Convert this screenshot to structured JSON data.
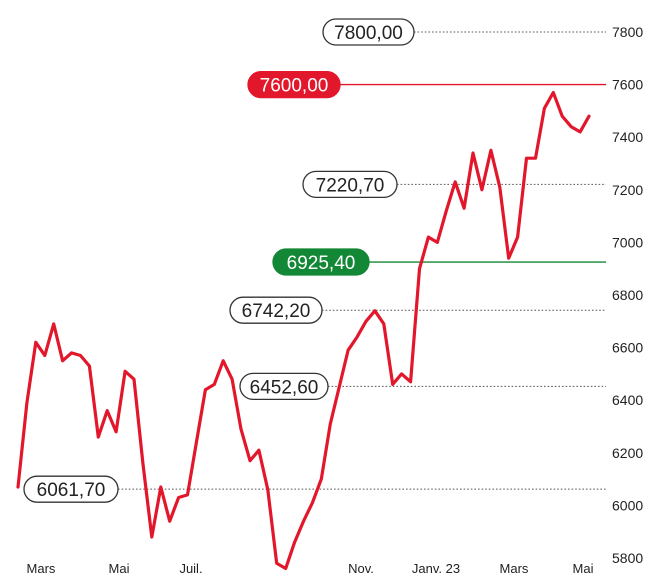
{
  "colors": {
    "line": "#e3172b",
    "resistance": "#e3172b",
    "support": "#128735",
    "dotted": "#555555",
    "text": "#222222"
  },
  "chart_data": {
    "type": "line",
    "title": "",
    "xlabel": "",
    "ylabel": "",
    "ylim": [
      5800,
      7900
    ],
    "grid": false,
    "y_axis_side": "right",
    "y_ticks": [
      "7800",
      "7600",
      "7400",
      "7200",
      "7000",
      "6800",
      "6600",
      "6400",
      "6200",
      "6000",
      "5800"
    ],
    "x_ticks": [
      "Mars",
      "Mai",
      "Juil.",
      "Nov.",
      "Janv. 23",
      "Mars",
      "Mai"
    ],
    "levels": [
      {
        "label": "7800,00",
        "value": 7800.0,
        "style": "dotted"
      },
      {
        "label": "7600,00",
        "value": 7600.0,
        "style": "resistance"
      },
      {
        "label": "7220,70",
        "value": 7220.7,
        "style": "dotted"
      },
      {
        "label": "6925,40",
        "value": 6925.4,
        "style": "support"
      },
      {
        "label": "6742,20",
        "value": 6742.2,
        "style": "dotted"
      },
      {
        "label": "6452,60",
        "value": 6452.6,
        "style": "dotted"
      },
      {
        "label": "6061,70",
        "value": 6061.7,
        "style": "dotted"
      }
    ],
    "series": [
      {
        "values": [
          6070,
          6390,
          6620,
          6570,
          6690,
          6550,
          6580,
          6570,
          6530,
          6260,
          6360,
          6280,
          6510,
          6480,
          6160,
          5880,
          6070,
          5940,
          6030,
          6040,
          6240,
          6440,
          6460,
          6550,
          6480,
          6290,
          6170,
          6210,
          6060,
          5780,
          5760,
          5860,
          5940,
          6010,
          6100,
          6310,
          6450,
          6590,
          6640,
          6700,
          6740,
          6690,
          6460,
          6500,
          6470,
          6900,
          7020,
          7000,
          7120,
          7230,
          7130,
          7340,
          7200,
          7350,
          7210,
          6940,
          7020,
          7320,
          7320,
          7510,
          7570,
          7480,
          7440,
          7420,
          7480
        ]
      }
    ]
  }
}
